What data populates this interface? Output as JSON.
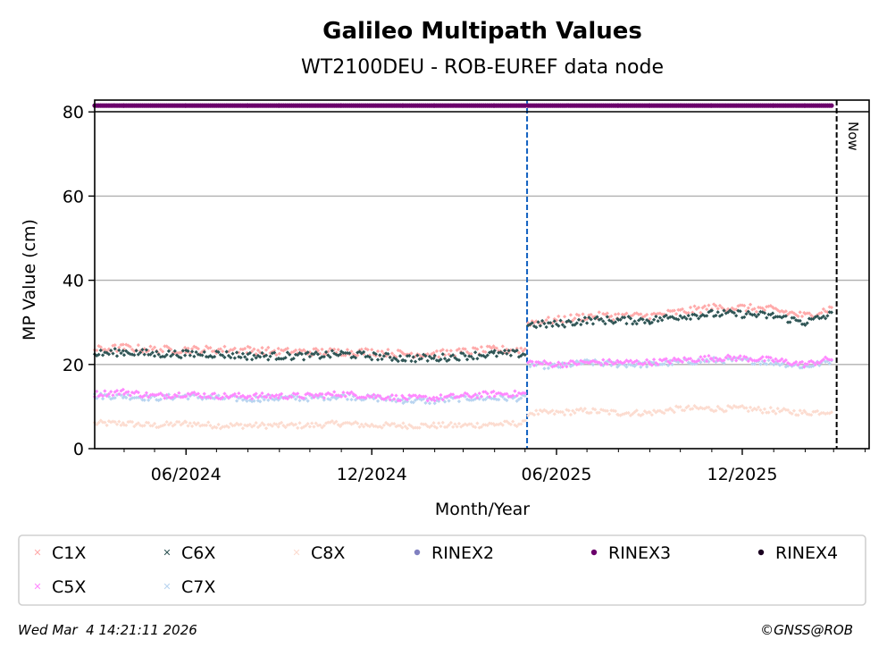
{
  "chart_data": {
    "type": "scatter",
    "title": "Galileo Multipath Values",
    "subtitle": "WT2100DEU - ROB-EUREF data node",
    "xlabel": "Month/Year",
    "ylabel": "MP Value (cm)",
    "xlim": [
      "2024-03-03",
      "2026-04-05"
    ],
    "ylim": [
      0,
      82.8
    ],
    "grid": "horizontal",
    "yticks": [
      0,
      20,
      40,
      60,
      80
    ],
    "ytick_labels": [
      "0",
      "20",
      "40",
      "60",
      "80"
    ],
    "xticks": [
      "2024-06-01",
      "2024-12-01",
      "2025-06-01",
      "2025-12-01"
    ],
    "xtick_labels": [
      "06/2024",
      "12/2024",
      "06/2025",
      "12/2025"
    ],
    "legend_placement": "bottom",
    "markers": {
      "change_line": {
        "date": "2025-05-03",
        "color": "#1060c0"
      },
      "now_line": {
        "date": "2026-03-04",
        "label": "Now",
        "color": "#000000"
      }
    },
    "x": [
      "2024-03-03",
      "2024-04-01",
      "2024-05-01",
      "2024-06-01",
      "2024-07-01",
      "2024-08-01",
      "2024-09-01",
      "2024-10-01",
      "2024-11-01",
      "2024-12-01",
      "2025-01-01",
      "2025-02-01",
      "2025-03-01",
      "2025-04-01",
      "2025-05-02",
      "2025-05-04",
      "2025-06-01",
      "2025-07-01",
      "2025-08-01",
      "2025-09-01",
      "2025-10-01",
      "2025-11-01",
      "2025-12-01",
      "2026-01-01",
      "2026-02-01",
      "2026-03-01"
    ],
    "series": [
      {
        "name": "C1X",
        "color": "#ffaaaa",
        "marker": "x",
        "values": [
          23.5,
          24,
          23.5,
          23.5,
          23.5,
          23.5,
          23,
          23,
          23,
          23,
          22.5,
          22.5,
          23,
          23.5,
          23.5,
          30,
          30.5,
          31.5,
          31.5,
          31.5,
          32.5,
          33.5,
          33.5,
          33,
          31.5,
          33.5
        ]
      },
      {
        "name": "C6X",
        "color": "#2f5555",
        "marker": "x",
        "values": [
          22.5,
          23,
          22.5,
          22.5,
          22.5,
          22,
          22,
          22,
          22.5,
          22,
          21.5,
          21.5,
          22,
          22.5,
          22.5,
          29.5,
          29.5,
          30.5,
          30.5,
          30.5,
          31.5,
          32,
          32,
          31.5,
          30,
          32
        ]
      },
      {
        "name": "C8X",
        "color": "#fcdcd0",
        "marker": "x",
        "values": [
          6,
          6,
          5.5,
          6,
          5.5,
          5.5,
          5.5,
          5.5,
          6,
          5.5,
          5.5,
          5.5,
          5.5,
          5.8,
          6,
          8.5,
          8.5,
          9,
          8.5,
          8.5,
          9.5,
          9.5,
          9.5,
          9,
          8.5,
          9
        ]
      },
      {
        "name": "RINEX2",
        "color": "#8080c0",
        "marker": "o",
        "values": []
      },
      {
        "name": "RINEX3",
        "color": "#6b006b",
        "marker": "o",
        "values": [
          81.5,
          81.5,
          81.5,
          81.5,
          81.5,
          81.5,
          81.5,
          81.5,
          81.5,
          81.5,
          81.5,
          81.5,
          81.5,
          81.5,
          81.5,
          81.5,
          81.5,
          81.5,
          81.5,
          81.5,
          81.5,
          81.5,
          81.5,
          81.5,
          81.5,
          81.5
        ]
      },
      {
        "name": "RINEX4",
        "color": "#1a0020",
        "marker": "o",
        "values": []
      },
      {
        "name": "C5X",
        "color": "#ff88ff",
        "marker": "x",
        "values": [
          13,
          13.5,
          12.5,
          13,
          12.5,
          12.5,
          12.5,
          12.5,
          13,
          12.5,
          12,
          12,
          12.5,
          13,
          13,
          20.5,
          20,
          20.5,
          20.5,
          20.5,
          21,
          21.5,
          21.5,
          21,
          20,
          21.5
        ]
      },
      {
        "name": "C7X",
        "color": "#b8d4f0",
        "marker": "x",
        "values": [
          12.5,
          12.5,
          12,
          12.5,
          12,
          11.8,
          12,
          12,
          12.5,
          12,
          11.5,
          11.3,
          12,
          12,
          12,
          20,
          19.5,
          20.5,
          20,
          20,
          20.5,
          21,
          21,
          20.5,
          19.5,
          21
        ]
      }
    ]
  },
  "footer": {
    "timestamp": "Wed Mar  4 14:21:11 2026",
    "copyright": "©GNSS@ROB"
  }
}
